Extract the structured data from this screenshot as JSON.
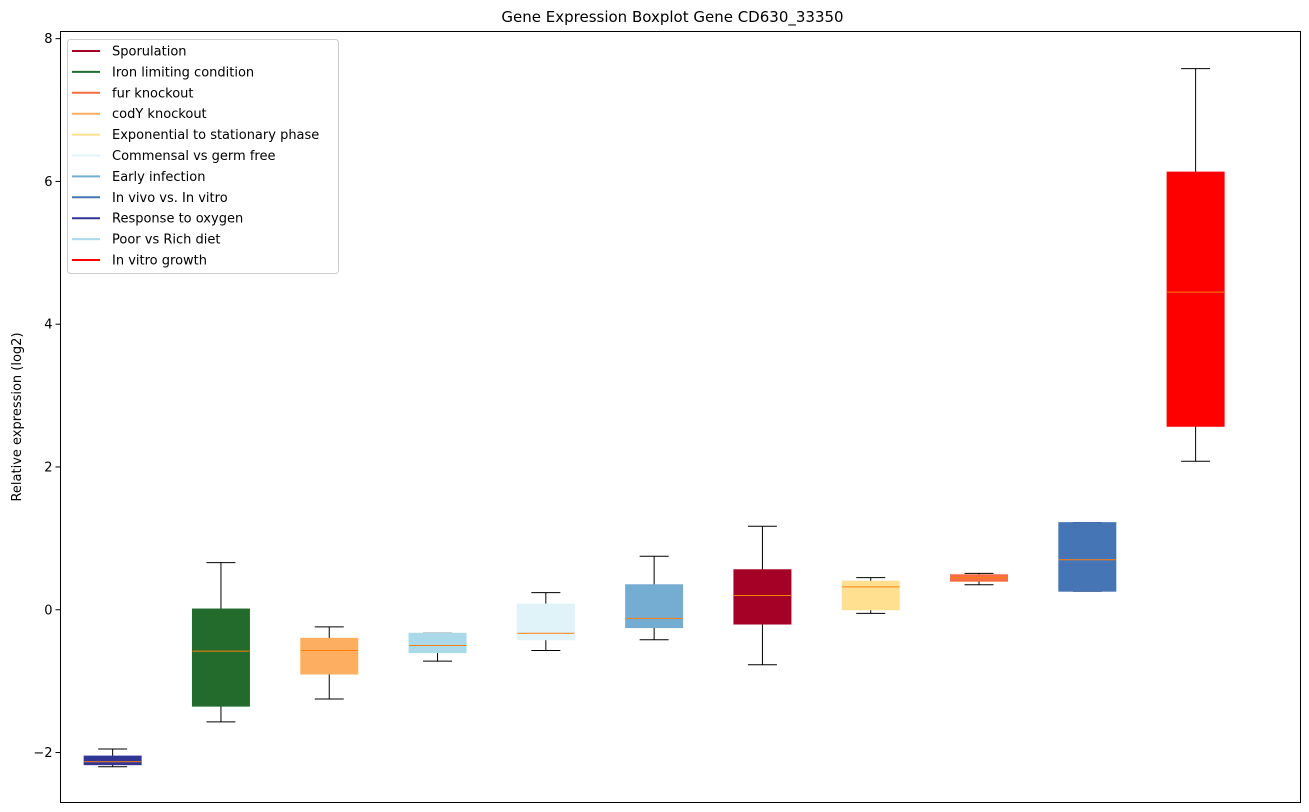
{
  "chart_data": {
    "type": "boxplot",
    "title": "Gene Expression Boxplot Gene CD630_33350",
    "xlabel": "",
    "ylabel": "Relative expression (log2)",
    "ylim": [
      -2.7,
      8.1
    ],
    "yticks": [
      -2,
      0,
      2,
      4,
      6,
      8
    ],
    "ytick_labels": [
      "−2",
      "0",
      "2",
      "4",
      "6",
      "8"
    ],
    "legend_position": "upper-left",
    "legend": [
      {
        "label": "Sporulation",
        "color": "#a50026"
      },
      {
        "label": "Iron limiting condition",
        "color": "#236b2d"
      },
      {
        "label": "fur knockout",
        "color": "#f46d43"
      },
      {
        "label": "codY knockout",
        "color": "#fdae61"
      },
      {
        "label": "Exponential to stationary phase",
        "color": "#fee090"
      },
      {
        "label": "Commensal vs germ free",
        "color": "#e0f3f8"
      },
      {
        "label": "Early infection",
        "color": "#74add1"
      },
      {
        "label": "In vivo vs. In vitro",
        "color": "#4575b4"
      },
      {
        "label": "Response to oxygen",
        "color": "#313695"
      },
      {
        "label": "Poor vs Rich diet",
        "color": "#abd9e9"
      },
      {
        "label": "In vitro growth",
        "color": "#ff0000"
      }
    ],
    "boxes": [
      {
        "group": "Response to oxygen",
        "color": "#313695",
        "whisker_low": -2.2,
        "q1": -2.17,
        "median": -2.13,
        "q3": -2.05,
        "whisker_high": -1.95
      },
      {
        "group": "Iron limiting condition",
        "color": "#236b2d",
        "whisker_low": -1.57,
        "q1": -1.35,
        "median": -0.58,
        "q3": 0.01,
        "whisker_high": 0.66
      },
      {
        "group": "codY knockout",
        "color": "#fdae61",
        "whisker_low": -1.25,
        "q1": -0.9,
        "median": -0.57,
        "q3": -0.4,
        "whisker_high": -0.24
      },
      {
        "group": "Poor vs Rich diet",
        "color": "#abd9e9",
        "whisker_low": -0.72,
        "q1": -0.6,
        "median": -0.5,
        "q3": -0.33,
        "whisker_high": -0.33
      },
      {
        "group": "Commensal vs germ free",
        "color": "#e0f3f8",
        "whisker_low": -0.57,
        "q1": -0.42,
        "median": -0.33,
        "q3": 0.08,
        "whisker_high": 0.24
      },
      {
        "group": "Early infection",
        "color": "#74add1",
        "whisker_low": -0.42,
        "q1": -0.25,
        "median": -0.12,
        "q3": 0.35,
        "whisker_high": 0.75
      },
      {
        "group": "Sporulation",
        "color": "#a50026",
        "whisker_low": -0.77,
        "q1": -0.2,
        "median": 0.2,
        "q3": 0.56,
        "whisker_high": 1.17
      },
      {
        "group": "Exponential to stationary phase",
        "color": "#fee090",
        "whisker_low": -0.05,
        "q1": 0.0,
        "median": 0.32,
        "q3": 0.4,
        "whisker_high": 0.45
      },
      {
        "group": "fur knockout",
        "color": "#f46d43",
        "whisker_low": 0.35,
        "q1": 0.4,
        "median": 0.45,
        "q3": 0.49,
        "whisker_high": 0.51
      },
      {
        "group": "In vivo vs. In vitro",
        "color": "#4575b4",
        "whisker_low": 0.26,
        "q1": 0.26,
        "median": 0.7,
        "q3": 1.22,
        "whisker_high": 1.22
      },
      {
        "group": "In vitro growth",
        "color": "#ff0000",
        "whisker_low": 2.08,
        "q1": 2.57,
        "median": 4.45,
        "q3": 6.13,
        "whisker_high": 7.58
      }
    ],
    "median_line_color": "#ff7f0e",
    "whisker_color": "#000000"
  }
}
